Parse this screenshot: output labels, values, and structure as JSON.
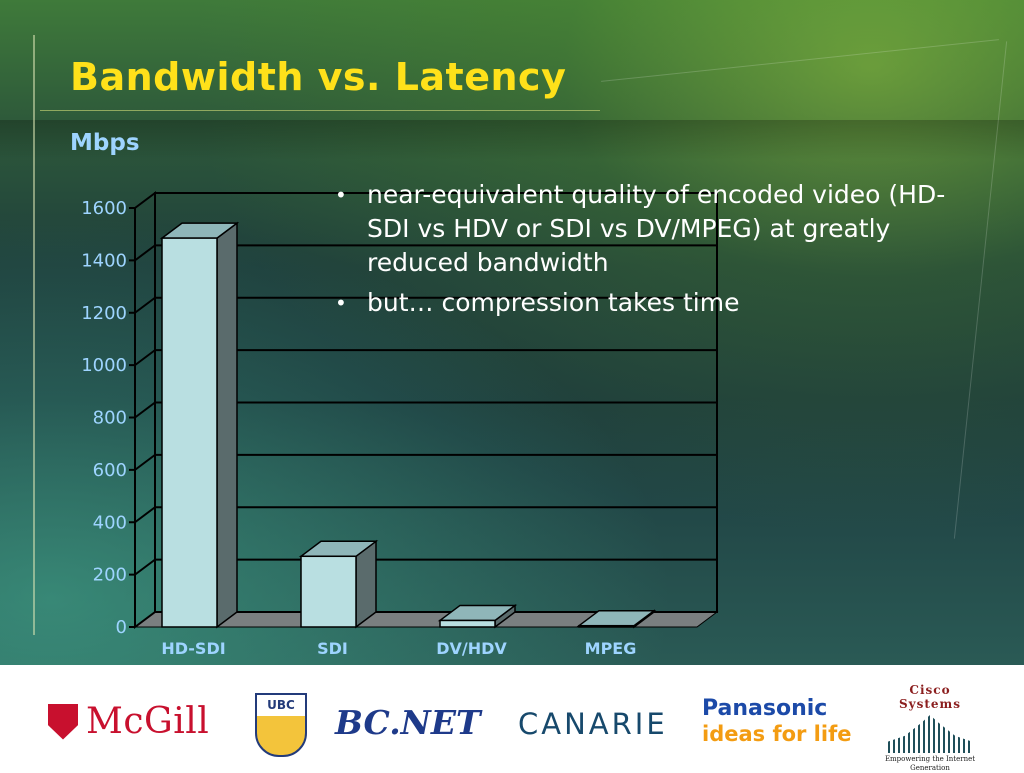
{
  "slide": {
    "title": "Bandwidth vs. Latency",
    "unit_label": "Mbps",
    "bullets": [
      "near-equivalent quality of encoded video (HD-SDI vs HDV or SDI vs DV/MPEG) at greatly reduced bandwidth",
      "but… compression takes time"
    ]
  },
  "chart_data": {
    "type": "bar",
    "categories": [
      "HD-SDI",
      "SDI",
      "DV/HDV",
      "MPEG"
    ],
    "values": [
      1485,
      270,
      25,
      5
    ],
    "ylim": [
      0,
      1600
    ],
    "yticks": [
      "0",
      "200",
      "400",
      "600",
      "800",
      "1000",
      "1200",
      "1400",
      "1600"
    ],
    "ylabel": "Mbps",
    "grid": true,
    "colors": {
      "bar_front": "#b9dfe1",
      "bar_side": "#5a6b6c",
      "bar_top": "#8fb6b9",
      "floor": "#7a7f80",
      "grid": "#000000",
      "labels": "#9ed4ff"
    }
  },
  "logos": {
    "mcgill": "McGill",
    "ubc": "UBC",
    "bcnet": "BC.NET",
    "canarie": "CANARIE",
    "panasonic_brand": "Panasonic",
    "panasonic_tagline": "ideas for life",
    "cisco_brand": "Cisco Systems",
    "cisco_tagline": "Empowering the Internet Generation"
  }
}
